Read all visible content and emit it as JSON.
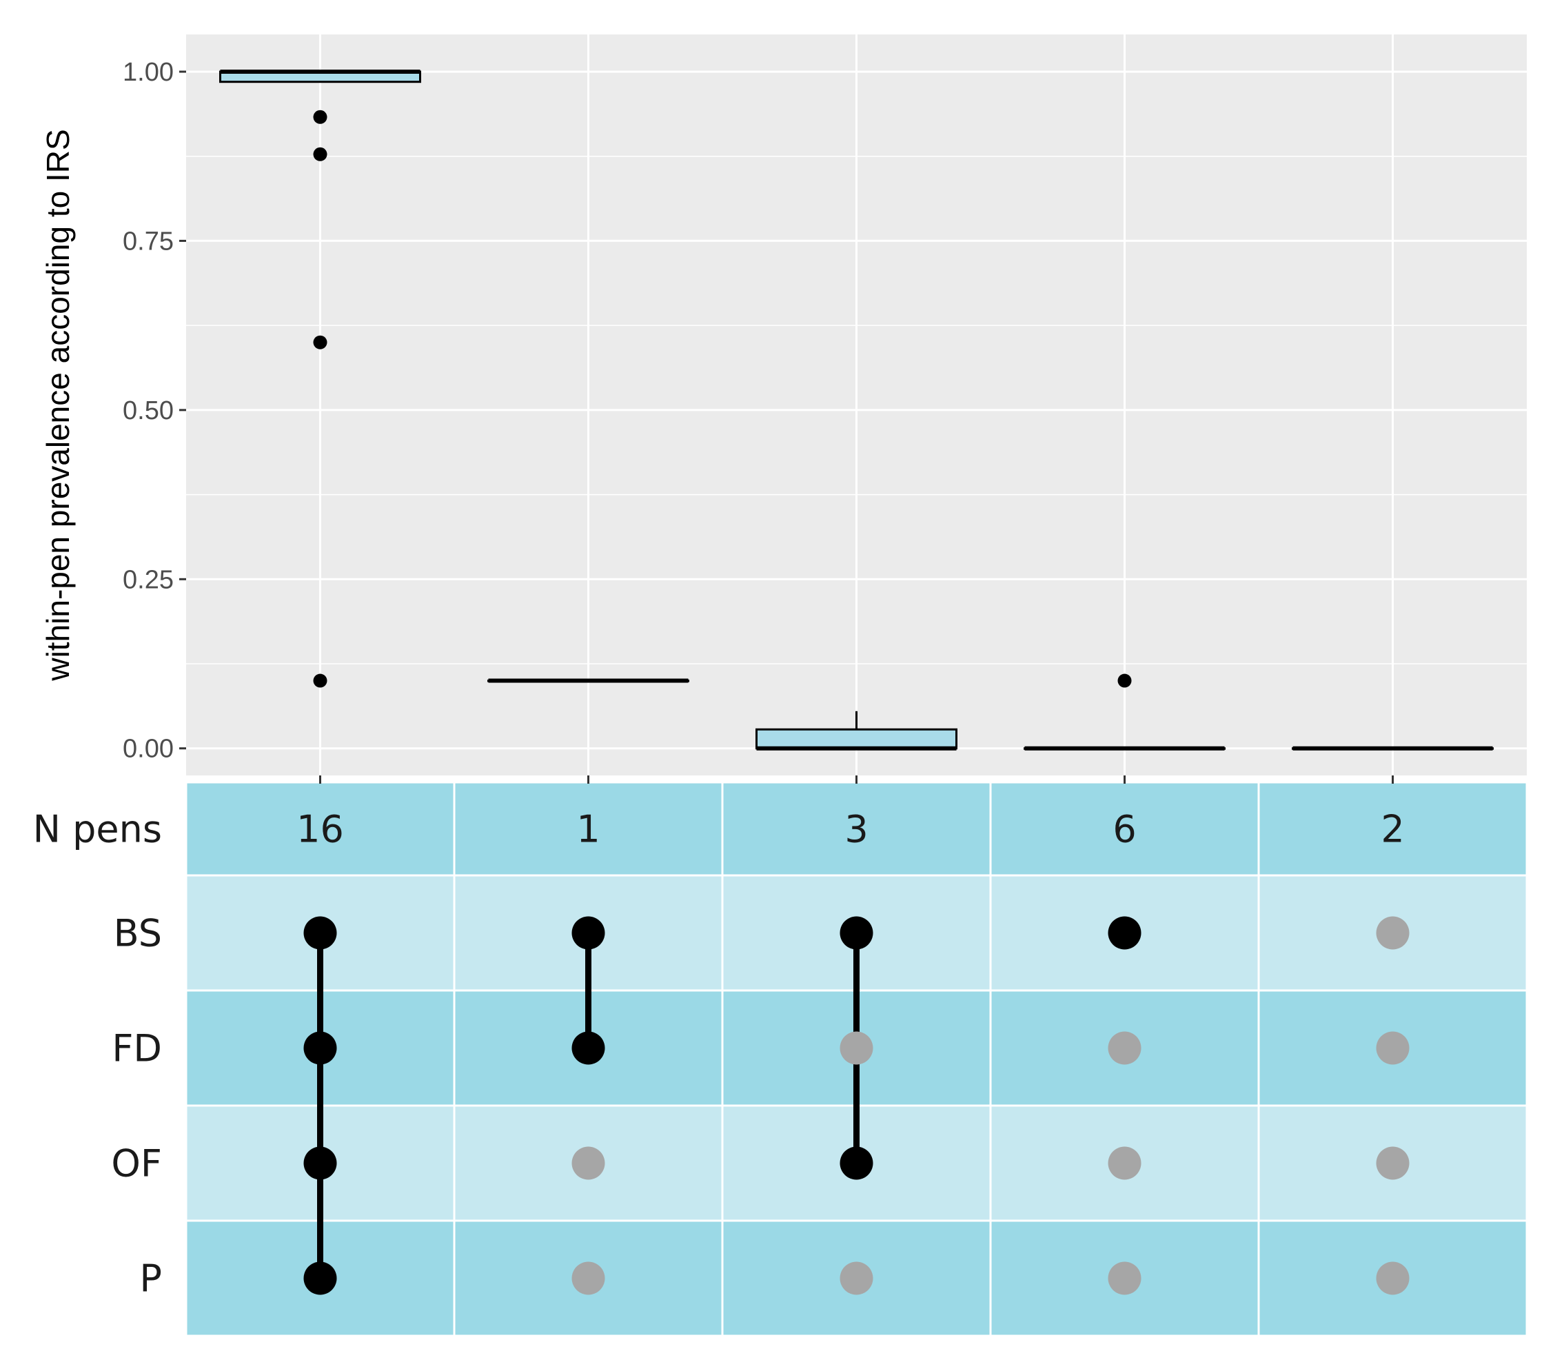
{
  "colors": {
    "panel_bg": "#ebebeb",
    "grid": "#ffffff",
    "box_fill": "#a9dbe9",
    "stroke": "#000000",
    "matrix_dark": "#9bd9e6",
    "matrix_light": "#c6e8f0",
    "dot_on": "#000000",
    "dot_off": "#a6a6a6"
  },
  "chart_data": {
    "type": "boxplot",
    "ylabel": "within-pen prevalence according to IRS",
    "ylim": [
      -0.04,
      1.055
    ],
    "yticks": [
      0,
      0.25,
      0.5,
      0.75,
      1
    ],
    "ytick_labels": [
      "0.00",
      "0.25",
      "0.50",
      "0.75",
      "1.00"
    ],
    "groups": [
      {
        "q1": 0.985,
        "median": 1.0,
        "q3": 1.0,
        "whisker_low": 0.985,
        "whisker_high": 1.0,
        "outliers": [
          0.933,
          0.878,
          0.6,
          0.1
        ]
      },
      {
        "q1": 0.1,
        "median": 0.1,
        "q3": 0.1,
        "whisker_low": 0.1,
        "whisker_high": 0.1,
        "outliers": []
      },
      {
        "q1": 0.0,
        "median": 0.0,
        "q3": 0.028,
        "whisker_low": 0.0,
        "whisker_high": 0.055,
        "outliers": []
      },
      {
        "q1": 0.0,
        "median": 0.0,
        "q3": 0.0,
        "whisker_low": 0.0,
        "whisker_high": 0.0,
        "outliers": [
          0.1
        ]
      },
      {
        "q1": 0.0,
        "median": 0.0,
        "q3": 0.0,
        "whisker_low": 0.0,
        "whisker_high": 0.0,
        "outliers": []
      }
    ],
    "matrix": {
      "count_label": "N pens",
      "counts": [
        "16",
        "1",
        "3",
        "6",
        "2"
      ],
      "sets": [
        "BS",
        "FD",
        "OF",
        "P"
      ],
      "membership": [
        [
          true,
          true,
          true,
          true
        ],
        [
          true,
          true,
          false,
          false
        ],
        [
          true,
          false,
          true,
          false
        ],
        [
          true,
          false,
          false,
          false
        ],
        [
          false,
          false,
          false,
          false
        ]
      ]
    }
  }
}
